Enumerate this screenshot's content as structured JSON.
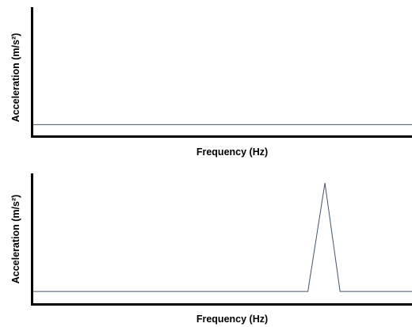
{
  "chart_data": [
    {
      "type": "line",
      "title": "",
      "xlabel": "Frequency (Hz)",
      "ylabel": "Acceleration (m/s²)",
      "xlim": [
        0,
        100
      ],
      "ylim": [
        0,
        1
      ],
      "grid": false,
      "legend": "none",
      "series": [
        {
          "name": "",
          "color": "#44546a",
          "x": [
            0,
            100
          ],
          "y": [
            0.09,
            0.09
          ]
        }
      ]
    },
    {
      "type": "line",
      "title": "",
      "xlabel": "Frequency (Hz)",
      "ylabel": "Acceleration (m/s²)",
      "xlim": [
        0,
        100
      ],
      "ylim": [
        0,
        1
      ],
      "grid": false,
      "legend": "none",
      "series": [
        {
          "name": "",
          "color": "#44546a",
          "x": [
            0,
            72.5,
            77.0,
            81.0,
            100
          ],
          "y": [
            0.09,
            0.09,
            0.92,
            0.09,
            0.09
          ]
        }
      ]
    }
  ]
}
